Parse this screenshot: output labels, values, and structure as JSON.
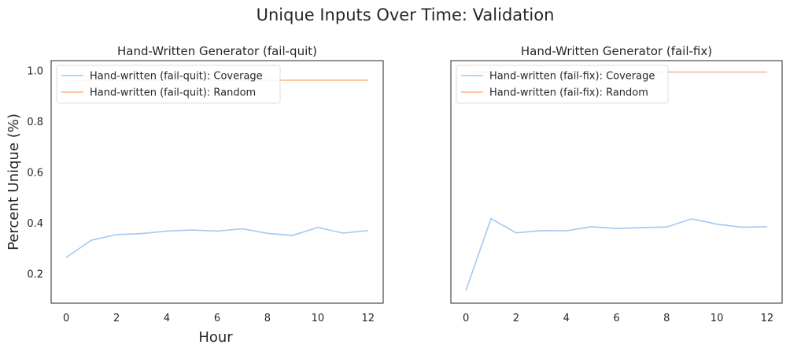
{
  "figure": {
    "suptitle": "Unique Inputs Over Time: Validation",
    "ylabel": "Percent Unique (%)",
    "xlabel": "Hour"
  },
  "colors": {
    "coverage": "#a1c9f4",
    "random": "#ffb482",
    "axis": "#262626",
    "text": "#262626"
  },
  "chart_data": [
    {
      "type": "line",
      "title": "Hand-Written Generator (fail-quit)",
      "xlabel": "Hour",
      "ylabel": "Percent Unique (%)",
      "x": [
        0,
        1,
        2,
        3,
        4,
        5,
        6,
        7,
        8,
        9,
        10,
        11,
        12
      ],
      "xlim": [
        -0.6,
        12.6
      ],
      "ylim": [
        0.085,
        1.04
      ],
      "xticks": [
        "0",
        "2",
        "4",
        "6",
        "8",
        "10",
        "12"
      ],
      "yticks": [
        "0.2",
        "0.4",
        "0.6",
        "0.8",
        "1.0"
      ],
      "grid": false,
      "legend_position": "upper-left",
      "series": [
        {
          "name": "Hand-written (fail-quit): Coverage",
          "color": "#a1c9f4",
          "values": [
            0.265,
            0.333,
            0.355,
            0.359,
            0.369,
            0.373,
            0.369,
            0.378,
            0.36,
            0.352,
            0.383,
            0.361,
            0.371
          ]
        },
        {
          "name": "Hand-written (fail-quit): Random",
          "color": "#ffb482",
          "values": [
            0.963,
            0.963,
            0.963,
            0.963,
            0.963,
            0.963,
            0.963,
            0.963,
            0.963,
            0.963,
            0.963,
            0.963,
            0.963
          ]
        }
      ]
    },
    {
      "type": "line",
      "title": "Hand-Written Generator (fail-fix)",
      "xlabel": "",
      "ylabel": "",
      "x": [
        0,
        1,
        2,
        3,
        4,
        5,
        6,
        7,
        8,
        9,
        10,
        11,
        12
      ],
      "xlim": [
        -0.6,
        12.6
      ],
      "ylim": [
        0.085,
        1.04
      ],
      "xticks": [
        "0",
        "2",
        "4",
        "6",
        "8",
        "10",
        "12"
      ],
      "yticks": [],
      "grid": false,
      "legend_position": "upper-left",
      "series": [
        {
          "name": "Hand-written (fail-fix): Coverage",
          "color": "#a1c9f4",
          "values": [
            0.135,
            0.418,
            0.362,
            0.371,
            0.37,
            0.386,
            0.379,
            0.382,
            0.385,
            0.417,
            0.396,
            0.384,
            0.386
          ]
        },
        {
          "name": "Hand-written (fail-fix): Random",
          "color": "#ffb482",
          "values": [
            0.995,
            0.995,
            0.995,
            0.995,
            0.995,
            0.995,
            0.995,
            0.995,
            0.995,
            0.995,
            0.995,
            0.995,
            0.995
          ]
        }
      ]
    }
  ]
}
